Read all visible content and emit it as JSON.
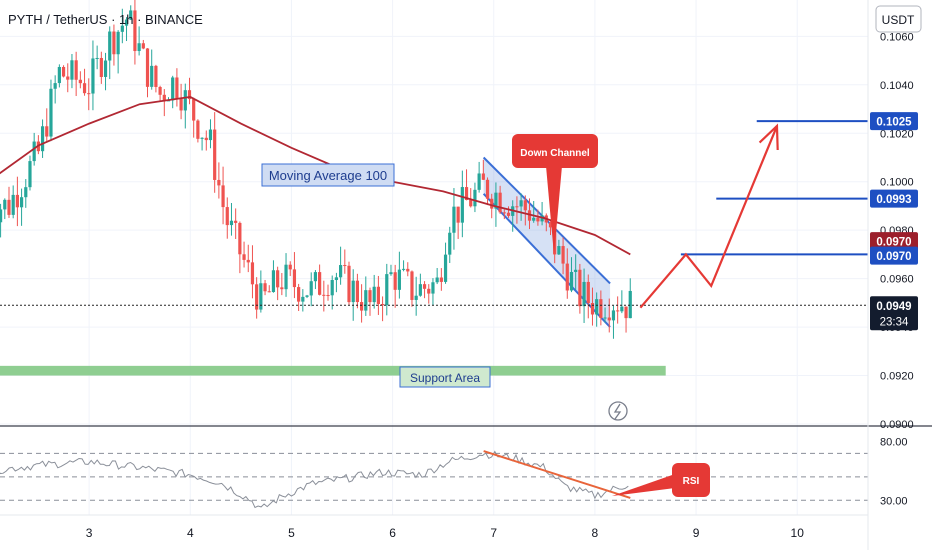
{
  "header": {
    "title": "PYTH / TetherUS · 1h · BINANCE",
    "currency_button": "USDT"
  },
  "price_axis": {
    "ticks": [
      "0.1060",
      "0.1040",
      "0.1020",
      "0.1000",
      "0.0980",
      "0.0960",
      "0.0940",
      "0.0920",
      "0.0900"
    ],
    "badges": {
      "target_high": "0.1025",
      "target_mid": "0.0993",
      "ma_value": "0.0970",
      "target_low": "0.0970",
      "last_price": "0.0949",
      "countdown": "23:34"
    }
  },
  "rsi_axis": {
    "ticks": [
      "80.00",
      "30.00"
    ]
  },
  "time_axis": {
    "ticks": [
      "3",
      "4",
      "5",
      "6",
      "7",
      "8",
      "9",
      "10"
    ]
  },
  "annotations": {
    "moving_average": "Moving Average 100",
    "down_channel": "Down Channel",
    "support_area": "Support Area",
    "rsi": "RSI"
  },
  "colors": {
    "up": "#26a69a",
    "down": "#ef5350",
    "ma": "#b22833",
    "target_line": "#1e4fc2",
    "support": "#7bc67e",
    "projection": "#e53935",
    "rsi_line": "#8a8f99",
    "rsi_trend": "#e8643a",
    "channel": "#3b6fd6"
  },
  "chart_data": {
    "type": "candlestick",
    "pair": "PYTH / TetherUS",
    "interval": "1h",
    "exchange": "BINANCE",
    "ylim": [
      0.09,
      0.1075
    ],
    "close_path": [
      [
        2.2,
        0.099
      ],
      [
        2.5,
        0.1012
      ],
      [
        2.7,
        0.1045
      ],
      [
        3.0,
        0.104
      ],
      [
        3.2,
        0.1058
      ],
      [
        3.38,
        0.1068
      ],
      [
        3.55,
        0.1048
      ],
      [
        3.7,
        0.1036
      ],
      [
        3.85,
        0.1042
      ],
      [
        4.0,
        0.103
      ],
      [
        4.2,
        0.1015
      ],
      [
        4.35,
        0.0985
      ],
      [
        4.55,
        0.0965
      ],
      [
        4.7,
        0.095
      ],
      [
        4.9,
        0.096
      ],
      [
        5.2,
        0.0955
      ],
      [
        5.4,
        0.0962
      ],
      [
        5.6,
        0.0956
      ],
      [
        5.8,
        0.0948
      ],
      [
        6.0,
        0.0962
      ],
      [
        6.2,
        0.0955
      ],
      [
        6.45,
        0.0958
      ],
      [
        6.55,
        0.0985
      ],
      [
        6.75,
        0.0992
      ],
      [
        6.9,
        0.0998
      ],
      [
        7.1,
        0.0993
      ],
      [
        7.35,
        0.0988
      ],
      [
        7.55,
        0.0978
      ],
      [
        7.7,
        0.0965
      ],
      [
        7.85,
        0.0953
      ],
      [
        8.0,
        0.095
      ],
      [
        8.2,
        0.0951
      ],
      [
        8.35,
        0.0949
      ]
    ],
    "moving_average_100": [
      [
        2.0,
        0.1
      ],
      [
        2.5,
        0.1015
      ],
      [
        3.0,
        0.1024
      ],
      [
        3.5,
        0.1032
      ],
      [
        4.0,
        0.1035
      ],
      [
        4.5,
        0.1024
      ],
      [
        5.0,
        0.1014
      ],
      [
        5.5,
        0.1005
      ],
      [
        6.0,
        0.1
      ],
      [
        6.5,
        0.0996
      ],
      [
        7.0,
        0.099
      ],
      [
        7.5,
        0.0985
      ],
      [
        8.0,
        0.0978
      ],
      [
        8.35,
        0.097
      ]
    ],
    "last_price": 0.0949,
    "horizontal_levels": [
      {
        "price": 0.1025,
        "from_x": 9.6
      },
      {
        "price": 0.0993,
        "from_x": 9.2
      },
      {
        "price": 0.097,
        "from_x": 8.85
      }
    ],
    "support_zone": [
      0.092,
      0.0924
    ],
    "down_channel": {
      "upper": [
        [
          6.9,
          0.101
        ],
        [
          8.15,
          0.0958
        ]
      ],
      "lower": [
        [
          6.9,
          0.0995
        ],
        [
          8.15,
          0.094
        ]
      ]
    },
    "projection_path": [
      [
        8.45,
        0.0948
      ],
      [
        8.9,
        0.097
      ],
      [
        9.15,
        0.0957
      ],
      [
        9.8,
        0.1023
      ]
    ],
    "rsi": {
      "ylim": [
        20,
        90
      ],
      "levels": [
        70,
        50,
        30
      ],
      "values": [
        [
          2.0,
          55
        ],
        [
          2.5,
          60
        ],
        [
          3.0,
          63
        ],
        [
          3.5,
          58
        ],
        [
          4.0,
          52
        ],
        [
          4.3,
          45
        ],
        [
          4.6,
          30
        ],
        [
          4.7,
          22
        ],
        [
          4.9,
          33
        ],
        [
          5.2,
          44
        ],
        [
          5.5,
          48
        ],
        [
          5.9,
          54
        ],
        [
          6.3,
          52
        ],
        [
          6.55,
          63
        ],
        [
          6.9,
          70
        ],
        [
          7.2,
          66
        ],
        [
          7.5,
          58
        ],
        [
          7.7,
          42
        ],
        [
          8.0,
          34
        ],
        [
          8.2,
          40
        ],
        [
          8.35,
          44
        ]
      ],
      "trendline": [
        [
          6.9,
          72
        ],
        [
          8.35,
          32
        ]
      ]
    }
  }
}
